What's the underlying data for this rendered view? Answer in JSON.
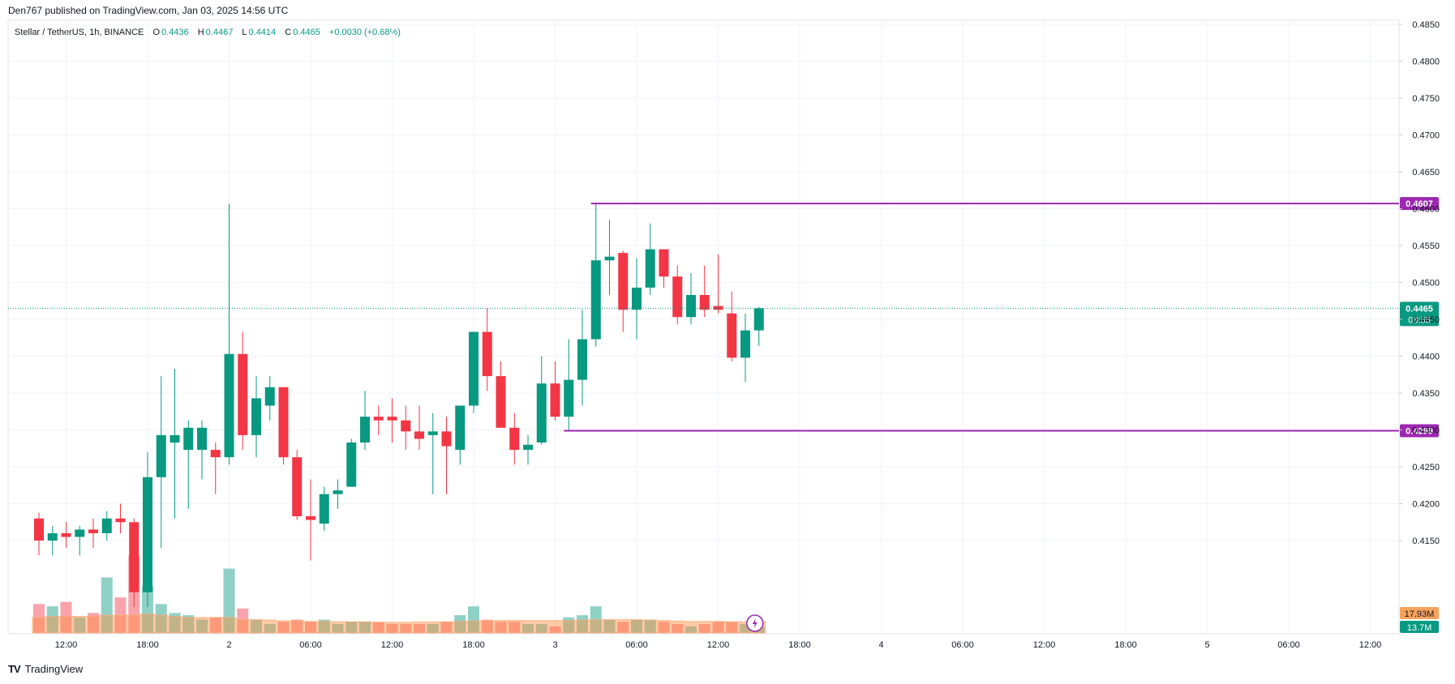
{
  "header": {
    "published_text": "Den767 published on TradingView.com, Jan 03, 2025 14:56 UTC",
    "symbol": "Stellar / TetherUS, 1h, BINANCE",
    "o_label": "O",
    "o_value": "0.4436",
    "h_label": "H",
    "h_value": "0.4467",
    "l_label": "L",
    "l_value": "0.4414",
    "c_label": "C",
    "c_value": "0.4465",
    "change": "+0.0030 (+0.68%)"
  },
  "footer": {
    "brand": "TradingView",
    "logo": "TV"
  },
  "chart_data": {
    "type": "candlestick",
    "colors": {
      "up": "#089981",
      "down": "#f23645",
      "level": "#9c27b0",
      "vol_ma": "#ffcc99"
    },
    "ylim": [
      0.4105,
      0.485
    ],
    "y_ticks": [
      "0.4850",
      "0.4800",
      "0.4750",
      "0.4700",
      "0.4650",
      "0.4600",
      "0.4550",
      "0.4500",
      "0.4450",
      "0.4400",
      "0.4350",
      "0.4300",
      "0.4250",
      "0.4200",
      "0.4150"
    ],
    "x_ticks": [
      {
        "i": 2,
        "label": "12:00"
      },
      {
        "i": 8,
        "label": "18:00"
      },
      {
        "i": 14,
        "label": "2"
      },
      {
        "i": 20,
        "label": "06:00"
      },
      {
        "i": 26,
        "label": "12:00"
      },
      {
        "i": 32,
        "label": "18:00"
      },
      {
        "i": 38,
        "label": "3"
      },
      {
        "i": 44,
        "label": "06:00"
      },
      {
        "i": 50,
        "label": "12:00"
      },
      {
        "i": 56,
        "label": "18:00"
      },
      {
        "i": 62,
        "label": "4"
      },
      {
        "i": 68,
        "label": "06:00"
      },
      {
        "i": 74,
        "label": "12:00"
      },
      {
        "i": 80,
        "label": "18:00"
      },
      {
        "i": 86,
        "label": "5"
      },
      {
        "i": 92,
        "label": "06:00"
      },
      {
        "i": 98,
        "label": "12:00"
      }
    ],
    "candles": [
      {
        "o": 0.418,
        "h": 0.4188,
        "l": 0.413,
        "c": 0.415
      },
      {
        "o": 0.415,
        "h": 0.417,
        "l": 0.413,
        "c": 0.416
      },
      {
        "o": 0.416,
        "h": 0.4175,
        "l": 0.414,
        "c": 0.4155
      },
      {
        "o": 0.4155,
        "h": 0.417,
        "l": 0.413,
        "c": 0.4165
      },
      {
        "o": 0.4165,
        "h": 0.418,
        "l": 0.414,
        "c": 0.416
      },
      {
        "o": 0.416,
        "h": 0.419,
        "l": 0.415,
        "c": 0.418
      },
      {
        "o": 0.418,
        "h": 0.42,
        "l": 0.416,
        "c": 0.4175
      },
      {
        "o": 0.4175,
        "h": 0.418,
        "l": 0.406,
        "c": 0.408
      },
      {
        "o": 0.408,
        "h": 0.427,
        "l": 0.406,
        "c": 0.4236
      },
      {
        "o": 0.4236,
        "h": 0.4373,
        "l": 0.414,
        "c": 0.4293
      },
      {
        "o": 0.4283,
        "h": 0.4383,
        "l": 0.418,
        "c": 0.4293
      },
      {
        "o": 0.4273,
        "h": 0.4313,
        "l": 0.4193,
        "c": 0.4303
      },
      {
        "o": 0.4273,
        "h": 0.4313,
        "l": 0.4233,
        "c": 0.4303
      },
      {
        "o": 0.4273,
        "h": 0.4283,
        "l": 0.4213,
        "c": 0.4263
      },
      {
        "o": 0.4263,
        "h": 0.4607,
        "l": 0.4253,
        "c": 0.4403
      },
      {
        "o": 0.4403,
        "h": 0.4433,
        "l": 0.4273,
        "c": 0.4293
      },
      {
        "o": 0.4293,
        "h": 0.4373,
        "l": 0.4263,
        "c": 0.4343
      },
      {
        "o": 0.4333,
        "h": 0.4373,
        "l": 0.4313,
        "c": 0.4358
      },
      {
        "o": 0.4358,
        "h": 0.4358,
        "l": 0.4253,
        "c": 0.4263
      },
      {
        "o": 0.4263,
        "h": 0.4273,
        "l": 0.4178,
        "c": 0.4183
      },
      {
        "o": 0.4183,
        "h": 0.4233,
        "l": 0.4123,
        "c": 0.4178
      },
      {
        "o": 0.4173,
        "h": 0.4223,
        "l": 0.4163,
        "c": 0.4213
      },
      {
        "o": 0.4213,
        "h": 0.4233,
        "l": 0.4193,
        "c": 0.4218
      },
      {
        "o": 0.4223,
        "h": 0.4288,
        "l": 0.4223,
        "c": 0.4283
      },
      {
        "o": 0.4283,
        "h": 0.4353,
        "l": 0.4273,
        "c": 0.4318
      },
      {
        "o": 0.4318,
        "h": 0.4333,
        "l": 0.4293,
        "c": 0.4313
      },
      {
        "o": 0.4318,
        "h": 0.4343,
        "l": 0.4283,
        "c": 0.4313
      },
      {
        "o": 0.4313,
        "h": 0.4333,
        "l": 0.4273,
        "c": 0.4298
      },
      {
        "o": 0.4298,
        "h": 0.4333,
        "l": 0.4273,
        "c": 0.4288
      },
      {
        "o": 0.4293,
        "h": 0.4323,
        "l": 0.4213,
        "c": 0.4298
      },
      {
        "o": 0.4298,
        "h": 0.4318,
        "l": 0.4213,
        "c": 0.4278
      },
      {
        "o": 0.4273,
        "h": 0.4333,
        "l": 0.4253,
        "c": 0.4333
      },
      {
        "o": 0.4333,
        "h": 0.4433,
        "l": 0.4323,
        "c": 0.4433
      },
      {
        "o": 0.4433,
        "h": 0.4465,
        "l": 0.4353,
        "c": 0.4373
      },
      {
        "o": 0.4373,
        "h": 0.4393,
        "l": 0.4303,
        "c": 0.4303
      },
      {
        "o": 0.4303,
        "h": 0.4323,
        "l": 0.4253,
        "c": 0.4273
      },
      {
        "o": 0.4273,
        "h": 0.4293,
        "l": 0.4253,
        "c": 0.428
      },
      {
        "o": 0.4283,
        "h": 0.44,
        "l": 0.428,
        "c": 0.4363
      },
      {
        "o": 0.4363,
        "h": 0.4393,
        "l": 0.4313,
        "c": 0.4318
      },
      {
        "o": 0.4318,
        "h": 0.4423,
        "l": 0.4299,
        "c": 0.4368
      },
      {
        "o": 0.4368,
        "h": 0.4463,
        "l": 0.4333,
        "c": 0.4423
      },
      {
        "o": 0.4423,
        "h": 0.4607,
        "l": 0.4413,
        "c": 0.453
      },
      {
        "o": 0.453,
        "h": 0.4585,
        "l": 0.4483,
        "c": 0.4535
      },
      {
        "o": 0.454,
        "h": 0.4543,
        "l": 0.4433,
        "c": 0.4463
      },
      {
        "o": 0.4463,
        "h": 0.4533,
        "l": 0.4423,
        "c": 0.4493
      },
      {
        "o": 0.4493,
        "h": 0.458,
        "l": 0.4483,
        "c": 0.4545
      },
      {
        "o": 0.4545,
        "h": 0.4545,
        "l": 0.4493,
        "c": 0.4508
      },
      {
        "o": 0.4508,
        "h": 0.4523,
        "l": 0.4443,
        "c": 0.4453
      },
      {
        "o": 0.4453,
        "h": 0.4513,
        "l": 0.4443,
        "c": 0.4483
      },
      {
        "o": 0.4483,
        "h": 0.4523,
        "l": 0.4453,
        "c": 0.4463
      },
      {
        "o": 0.4468,
        "h": 0.4538,
        "l": 0.4458,
        "c": 0.4463
      },
      {
        "o": 0.4458,
        "h": 0.4488,
        "l": 0.4393,
        "c": 0.4398
      },
      {
        "o": 0.4398,
        "h": 0.4458,
        "l": 0.4365,
        "c": 0.4435
      },
      {
        "o": 0.4435,
        "h": 0.4467,
        "l": 0.4414,
        "c": 0.4465
      }
    ],
    "volume": {
      "scale_labels": [
        "17.93M",
        "13.7M"
      ],
      "max_value": 42,
      "values": [
        13,
        12,
        14,
        7,
        9,
        25,
        16,
        35,
        21,
        13,
        9,
        8,
        6,
        7,
        29,
        11,
        6,
        4,
        5,
        6,
        5,
        6,
        4,
        5,
        5,
        5,
        4,
        4,
        4,
        4,
        5,
        8,
        12,
        6,
        5,
        5,
        4,
        4,
        3,
        7,
        8,
        12,
        6,
        5,
        6,
        6,
        5,
        4,
        3,
        4,
        5,
        5,
        4,
        3
      ],
      "ma": [
        7,
        7.5,
        7.5,
        7.5,
        7.5,
        8,
        8,
        8,
        8.5,
        8,
        7.5,
        7,
        7,
        7,
        7,
        6,
        6,
        5.8,
        5.5,
        5.5,
        5.2,
        5.2,
        5,
        5,
        5,
        4.8,
        4.8,
        4.8,
        5,
        5,
        5,
        5.2,
        5.4,
        5.5,
        5.6,
        5.6,
        5.6,
        5.6,
        5.6,
        5.6,
        5.8,
        6,
        6,
        6,
        6,
        5.8,
        5.6,
        5.4,
        5.2,
        5.2,
        5.2,
        5,
        5,
        5
      ]
    },
    "levels": [
      {
        "value": 0.4607,
        "label": "0.4607",
        "from_i": 41
      },
      {
        "value": 0.4299,
        "label": "0.4299",
        "from_i": 39
      }
    ],
    "last_price": {
      "label": "0.4465",
      "countdown": "03:55",
      "value": 0.4465
    }
  }
}
